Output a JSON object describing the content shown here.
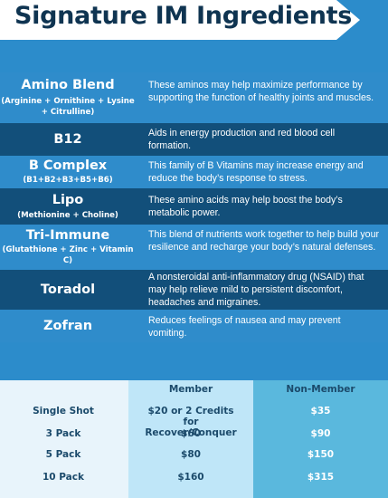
{
  "header": {
    "title": "Signature IM Ingredients"
  },
  "ingredients": [
    {
      "name": "Amino Blend",
      "sub": "(Arginine + Ornithine + Lysine + Citrulline)",
      "description": "These aminos may help maximize performance by supporting the function of healthy joints and muscles."
    },
    {
      "name": "B12",
      "sub": "",
      "description": "Aids in energy production and red blood cell formation."
    },
    {
      "name": "B Complex",
      "sub": "(B1+B2+B3+B5+B6)",
      "description": "This family of B Vitamins may increase energy and reduce the body’s response to stress."
    },
    {
      "name": "Lipo",
      "sub": "(Methionine + Choline)",
      "description": "These amino acids may help boost the body’s metabolic power."
    },
    {
      "name": "Tri-Immune",
      "sub": "(Glutathione + Zinc + Vitamin C)",
      "description": "This blend of nutrients work together to help build your resilience and recharge your body’s natural defenses."
    },
    {
      "name": "Toradol",
      "sub": "",
      "description": "A nonsteroidal anti-inflammatory drug (NSAID) that may help relieve mild to persistent discomfort, headaches and migraines."
    },
    {
      "name": "Zofran",
      "sub": "",
      "description": "Reduces feelings of nausea and may prevent vomiting."
    }
  ],
  "pricing": {
    "headers": {
      "member": "Member",
      "non_member": "Non-Member"
    },
    "rows": [
      {
        "label": "Single Shot",
        "member": "$20 or 2 Credits for Recover/Conquer",
        "non_member": "$35"
      },
      {
        "label": "3 Pack",
        "member": "$60",
        "non_member": "$90"
      },
      {
        "label": "5 Pack",
        "member": "$80",
        "non_member": "$150"
      },
      {
        "label": "10 Pack",
        "member": "$160",
        "non_member": "$315"
      }
    ]
  },
  "colors": {
    "title": "#0f3451",
    "light_blue": "#2f8ccb",
    "dark_blue": "#124f7a",
    "member_col": "#bfe6f8",
    "non_member_col": "#5ab8dd"
  }
}
